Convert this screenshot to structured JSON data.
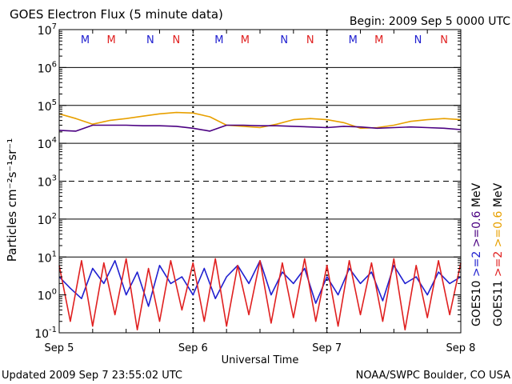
{
  "chart_data": {
    "type": "line",
    "title": "GOES Electron Flux (5 minute data)",
    "begin_label": "Begin: 2009 Sep 5 0000 UTC",
    "xlabel": "Universal Time",
    "ylabel": "Particles cm⁻²s⁻¹sr⁻¹",
    "y_scale": "log",
    "ylim": [
      0.1,
      10000000
    ],
    "y_ticks": [
      {
        "value": 0.1,
        "base": "10",
        "exp": "-1"
      },
      {
        "value": 1,
        "base": "10",
        "exp": "0"
      },
      {
        "value": 10,
        "base": "10",
        "exp": "1"
      },
      {
        "value": 100,
        "base": "10",
        "exp": "2"
      },
      {
        "value": 1000,
        "base": "10",
        "exp": "3"
      },
      {
        "value": 10000,
        "base": "10",
        "exp": "4"
      },
      {
        "value": 100000,
        "base": "10",
        "exp": "5"
      },
      {
        "value": 1000000,
        "base": "10",
        "exp": "6"
      },
      {
        "value": 10000000,
        "base": "10",
        "exp": "7"
      }
    ],
    "xlim": [
      "2009-09-05 00:00",
      "2009-09-08 00:00"
    ],
    "x_ticks": [
      {
        "value": "2009-09-05 00:00",
        "label": "Sep 5"
      },
      {
        "value": "2009-09-06 00:00",
        "label": "Sep 6"
      },
      {
        "value": "2009-09-07 00:00",
        "label": "Sep 7"
      },
      {
        "value": "2009-09-08 00:00",
        "label": "Sep 8"
      }
    ],
    "threshold_lines": [
      {
        "value": 10,
        "style": "solid"
      },
      {
        "value": 100,
        "style": "solid"
      },
      {
        "value": 1000,
        "style": "dashed"
      },
      {
        "value": 10000,
        "style": "solid"
      },
      {
        "value": 100000,
        "style": "solid"
      },
      {
        "value": 1000000,
        "style": "solid"
      }
    ],
    "noon_midnight_markers": [
      {
        "letter": "M",
        "time": "2009-09-05 04:40",
        "color": "#2020d0"
      },
      {
        "letter": "M",
        "time": "2009-09-05 09:20",
        "color": "#e02020"
      },
      {
        "letter": "N",
        "time": "2009-09-05 16:20",
        "color": "#2020d0"
      },
      {
        "letter": "N",
        "time": "2009-09-05 21:00",
        "color": "#e02020"
      },
      {
        "letter": "M",
        "time": "2009-09-06 04:40",
        "color": "#2020d0"
      },
      {
        "letter": "M",
        "time": "2009-09-06 09:20",
        "color": "#e02020"
      },
      {
        "letter": "N",
        "time": "2009-09-06 16:20",
        "color": "#2020d0"
      },
      {
        "letter": "N",
        "time": "2009-09-06 21:00",
        "color": "#e02020"
      },
      {
        "letter": "M",
        "time": "2009-09-07 04:40",
        "color": "#2020d0"
      },
      {
        "letter": "M",
        "time": "2009-09-07 09:20",
        "color": "#e02020"
      },
      {
        "letter": "N",
        "time": "2009-09-07 16:20",
        "color": "#2020d0"
      },
      {
        "letter": "N",
        "time": "2009-09-07 21:00",
        "color": "#e02020"
      }
    ],
    "legend": {
      "placement": "right",
      "columns": [
        {
          "satellite": "GOES10",
          "lines": [
            {
              "text": ">=2",
              "color": "#2020d0"
            },
            {
              "text": ">=0.6",
              "color": "#4b0082"
            }
          ]
        },
        {
          "satellite": "GOES11",
          "lines": [
            {
              "text": ">=2",
              "color": "#e02020"
            },
            {
              "text": ">=0.6",
              "color": "#e8a000"
            }
          ]
        }
      ],
      "unit": "MeV"
    },
    "series": [
      {
        "name": "GOES11 >=0.6 MeV",
        "color": "#e8a000",
        "x": [
          "2009-09-05 00:00",
          "2009-09-05 03:00",
          "2009-09-05 06:00",
          "2009-09-05 09:00",
          "2009-09-05 12:00",
          "2009-09-05 15:00",
          "2009-09-05 18:00",
          "2009-09-05 21:00",
          "2009-09-06 00:00",
          "2009-09-06 03:00",
          "2009-09-06 06:00",
          "2009-09-06 09:00",
          "2009-09-06 12:00",
          "2009-09-06 15:00",
          "2009-09-06 18:00",
          "2009-09-06 21:00",
          "2009-09-07 00:00",
          "2009-09-07 03:00",
          "2009-09-07 06:00",
          "2009-09-07 09:00",
          "2009-09-07 12:00",
          "2009-09-07 15:00",
          "2009-09-07 18:00",
          "2009-09-07 21:00",
          "2009-09-08 00:00"
        ],
        "values": [
          60000,
          45000,
          32000,
          40000,
          45000,
          52000,
          60000,
          65000,
          63000,
          50000,
          30000,
          28000,
          26000,
          32000,
          42000,
          45000,
          42000,
          35000,
          25000,
          26000,
          30000,
          38000,
          42000,
          45000,
          42000
        ]
      },
      {
        "name": "GOES10 >=0.6 MeV",
        "color": "#4b0082",
        "x": [
          "2009-09-05 00:00",
          "2009-09-05 03:00",
          "2009-09-05 06:00",
          "2009-09-05 09:00",
          "2009-09-05 12:00",
          "2009-09-05 15:00",
          "2009-09-05 18:00",
          "2009-09-05 21:00",
          "2009-09-06 00:00",
          "2009-09-06 03:00",
          "2009-09-06 06:00",
          "2009-09-06 09:00",
          "2009-09-06 12:00",
          "2009-09-06 15:00",
          "2009-09-06 18:00",
          "2009-09-06 21:00",
          "2009-09-07 00:00",
          "2009-09-07 03:00",
          "2009-09-07 06:00",
          "2009-09-07 09:00",
          "2009-09-07 12:00",
          "2009-09-07 15:00",
          "2009-09-07 18:00",
          "2009-09-07 21:00",
          "2009-09-08 00:00"
        ],
        "values": [
          22000,
          21000,
          30000,
          30000,
          30000,
          29000,
          29000,
          28000,
          25000,
          21000,
          30000,
          30000,
          29000,
          29000,
          28000,
          27000,
          26000,
          28000,
          27000,
          25000,
          26000,
          27000,
          26000,
          25000,
          23000
        ]
      },
      {
        "name": "GOES10 >=2 MeV",
        "color": "#2020d0",
        "x": [
          "2009-09-05 00:00",
          "2009-09-05 02:00",
          "2009-09-05 04:00",
          "2009-09-05 06:00",
          "2009-09-05 08:00",
          "2009-09-05 10:00",
          "2009-09-05 12:00",
          "2009-09-05 14:00",
          "2009-09-05 16:00",
          "2009-09-05 18:00",
          "2009-09-05 20:00",
          "2009-09-05 22:00",
          "2009-09-06 00:00",
          "2009-09-06 02:00",
          "2009-09-06 04:00",
          "2009-09-06 06:00",
          "2009-09-06 08:00",
          "2009-09-06 10:00",
          "2009-09-06 12:00",
          "2009-09-06 14:00",
          "2009-09-06 16:00",
          "2009-09-06 18:00",
          "2009-09-06 20:00",
          "2009-09-06 22:00",
          "2009-09-07 00:00",
          "2009-09-07 02:00",
          "2009-09-07 04:00",
          "2009-09-07 06:00",
          "2009-09-07 08:00",
          "2009-09-07 10:00",
          "2009-09-07 12:00",
          "2009-09-07 14:00",
          "2009-09-07 16:00",
          "2009-09-07 18:00",
          "2009-09-07 20:00",
          "2009-09-07 22:00",
          "2009-09-08 00:00"
        ],
        "values": [
          3,
          1.5,
          0.8,
          5,
          2,
          8,
          1,
          4,
          0.5,
          6,
          2,
          3,
          1,
          5,
          0.8,
          3,
          6,
          2,
          8,
          1,
          4,
          2,
          5,
          0.6,
          3,
          1,
          5,
          2,
          4,
          0.7,
          6,
          2,
          3,
          1,
          4,
          2,
          3
        ]
      },
      {
        "name": "GOES11 >=2 MeV",
        "color": "#e02020",
        "x": [
          "2009-09-05 00:00",
          "2009-09-05 02:00",
          "2009-09-05 04:00",
          "2009-09-05 06:00",
          "2009-09-05 08:00",
          "2009-09-05 10:00",
          "2009-09-05 12:00",
          "2009-09-05 14:00",
          "2009-09-05 16:00",
          "2009-09-05 18:00",
          "2009-09-05 20:00",
          "2009-09-05 22:00",
          "2009-09-06 00:00",
          "2009-09-06 02:00",
          "2009-09-06 04:00",
          "2009-09-06 06:00",
          "2009-09-06 08:00",
          "2009-09-06 10:00",
          "2009-09-06 12:00",
          "2009-09-06 14:00",
          "2009-09-06 16:00",
          "2009-09-06 18:00",
          "2009-09-06 20:00",
          "2009-09-06 22:00",
          "2009-09-07 00:00",
          "2009-09-07 02:00",
          "2009-09-07 04:00",
          "2009-09-07 06:00",
          "2009-09-07 08:00",
          "2009-09-07 10:00",
          "2009-09-07 12:00",
          "2009-09-07 14:00",
          "2009-09-07 16:00",
          "2009-09-07 18:00",
          "2009-09-07 20:00",
          "2009-09-07 22:00",
          "2009-09-08 00:00"
        ],
        "values": [
          6,
          0.2,
          8,
          0.15,
          7,
          0.3,
          9,
          0.12,
          5,
          0.2,
          8,
          0.4,
          7,
          0.2,
          9,
          0.15,
          6,
          0.3,
          8,
          0.18,
          7,
          0.25,
          9,
          0.2,
          6,
          0.15,
          8,
          0.3,
          7,
          0.2,
          9,
          0.12,
          6,
          0.25,
          8,
          0.3,
          7
        ]
      }
    ]
  },
  "footer": {
    "updated": "Updated 2009 Sep  7 23:55:02 UTC",
    "source": "NOAA/SWPC Boulder, CO USA"
  }
}
